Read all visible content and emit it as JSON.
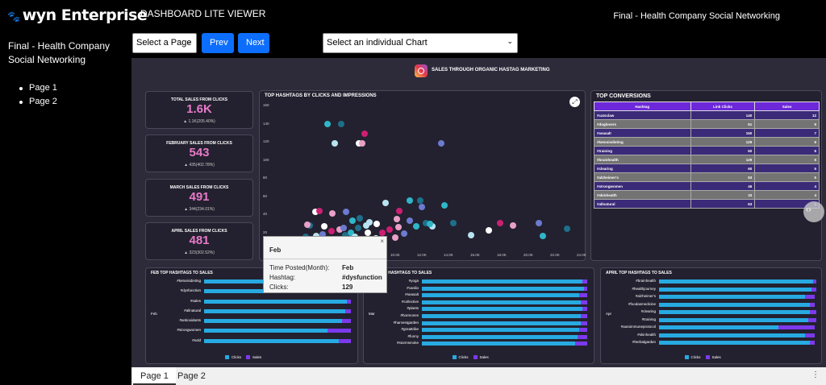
{
  "header": {
    "logo": "wyn Enterprise",
    "app_title": "DASHBOARD LITE VIEWER",
    "report_name": "Final - Health Company Social Networking"
  },
  "sidebar": {
    "title": "Final - Health Company Social Networking",
    "pages": [
      "Page 1",
      "Page 2"
    ]
  },
  "controls": {
    "page_select": "Select a Page",
    "prev": "Prev",
    "next": "Next",
    "chart_select": "Select an individual Chart"
  },
  "dashboard": {
    "title": "SALES THROUGH ORGANIC HASTAG MARKETING"
  },
  "kpis": [
    {
      "label": "TOTAL SALES FROM CLICKS",
      "value": "1.6K",
      "change": "▲ 1.1K(205.40%)"
    },
    {
      "label": "FEBRUARY SALES FROM CLICKS",
      "value": "543",
      "change": "▲ 435(402.78%)"
    },
    {
      "label": "MARCH SALES FROM CLICKS",
      "value": "491",
      "change": "▲ 344(234.01%)"
    },
    {
      "label": "APRIL SALES FROM CLICKS",
      "value": "481",
      "change": "▲ 323(302.52%)"
    }
  ],
  "scatter": {
    "title": "TOP HASHTAGS BY CLICKS AND IMPRESSIONS",
    "y_ticks": [
      "160",
      "140",
      "120",
      "100",
      "80",
      "60",
      "40",
      "20"
    ],
    "x_ticks": [
      "10.0K",
      "12.0K",
      "14.0K",
      "16.0K",
      "18.0K",
      "20.0K",
      "22.0K",
      "24.0K"
    ],
    "colors": [
      "#2fb6c8",
      "#1e6f8a",
      "#b8e3f0",
      "#ffffff",
      "#cc1f73",
      "#e9a0c8",
      "#6c7bd0"
    ]
  },
  "conversions": {
    "title": "TOP CONVERSIONS",
    "columns": [
      "Hashtag",
      "Link Clicks",
      "Sales"
    ],
    "rows": [
      [
        "#catsclaw",
        "140",
        "12"
      ],
      [
        "#doglovers",
        "61",
        "9"
      ],
      [
        "#seasalt",
        "150",
        "7"
      ],
      [
        "#ketosisdieting",
        "129",
        "6"
      ],
      [
        "#training",
        "60",
        "6"
      ],
      [
        "#brainhealth",
        "129",
        "6"
      ],
      [
        "#clearing",
        "60",
        "5"
      ],
      [
        "#alzheimer's",
        "63",
        "5"
      ],
      [
        "#strongwomen",
        "46",
        "4"
      ],
      [
        "#skinhealth",
        "33",
        "4"
      ],
      [
        "#allnatural",
        "63",
        "4"
      ]
    ]
  },
  "bar_charts": [
    {
      "title": "FEB TOP HASHTAGS TO SALES",
      "month": "Feb",
      "labels": [
        "#ketosisdieting",
        "#dysfunction",
        "#sales",
        "#allnatural",
        "#antioxidants",
        "#strongwomen",
        "#sold"
      ],
      "clicks": [
        0.97,
        0.96,
        0.96,
        0.95,
        0.93,
        0.83,
        0.91
      ],
      "sales": [
        0.03,
        0.04,
        0.03,
        0.04,
        0.06,
        0.16,
        0.08
      ]
    },
    {
      "title": "MAR TOP HASHTAGS TO SALES",
      "month": "Mar",
      "labels": [
        "#yoga",
        "#cardio",
        "#seasalt",
        "#collective",
        "#plants",
        "#hormones",
        "#harvestgarden",
        "#greattribe",
        "#funny",
        "#stormsmoke"
      ],
      "clicks": [
        0.96,
        0.97,
        0.94,
        0.95,
        0.96,
        0.95,
        0.95,
        0.94,
        0.93,
        0.92
      ],
      "sales": [
        0.03,
        0.02,
        0.05,
        0.04,
        0.03,
        0.04,
        0.04,
        0.05,
        0.06,
        0.07
      ]
    },
    {
      "title": "APRIL TOP HASHTAGS TO SALES",
      "month": "Apr",
      "labels": [
        "#brainhealth",
        "#healthjourney",
        "#alzheimer's",
        "#foodasmedicine",
        "#clearing",
        "#training",
        "#autoimmuneprotocol",
        "#skinhealth",
        "#herbalgarden"
      ],
      "clicks": [
        0.98,
        0.97,
        0.93,
        0.96,
        0.96,
        0.95,
        0.76,
        0.93,
        0.96
      ],
      "sales": [
        0.02,
        0.03,
        0.06,
        0.03,
        0.04,
        0.05,
        0.23,
        0.06,
        0.03
      ]
    }
  ],
  "legend": {
    "clicks": "Clicks",
    "sales": "Sales"
  },
  "tooltip": {
    "header": "Feb",
    "rows": [
      [
        "Time Posted(Month):",
        "Feb"
      ],
      [
        "Hashtag:",
        "#dysfunction"
      ],
      [
        "Clicks:",
        "129"
      ]
    ]
  },
  "page_tabs": [
    "Page 1",
    "Page 2"
  ]
}
